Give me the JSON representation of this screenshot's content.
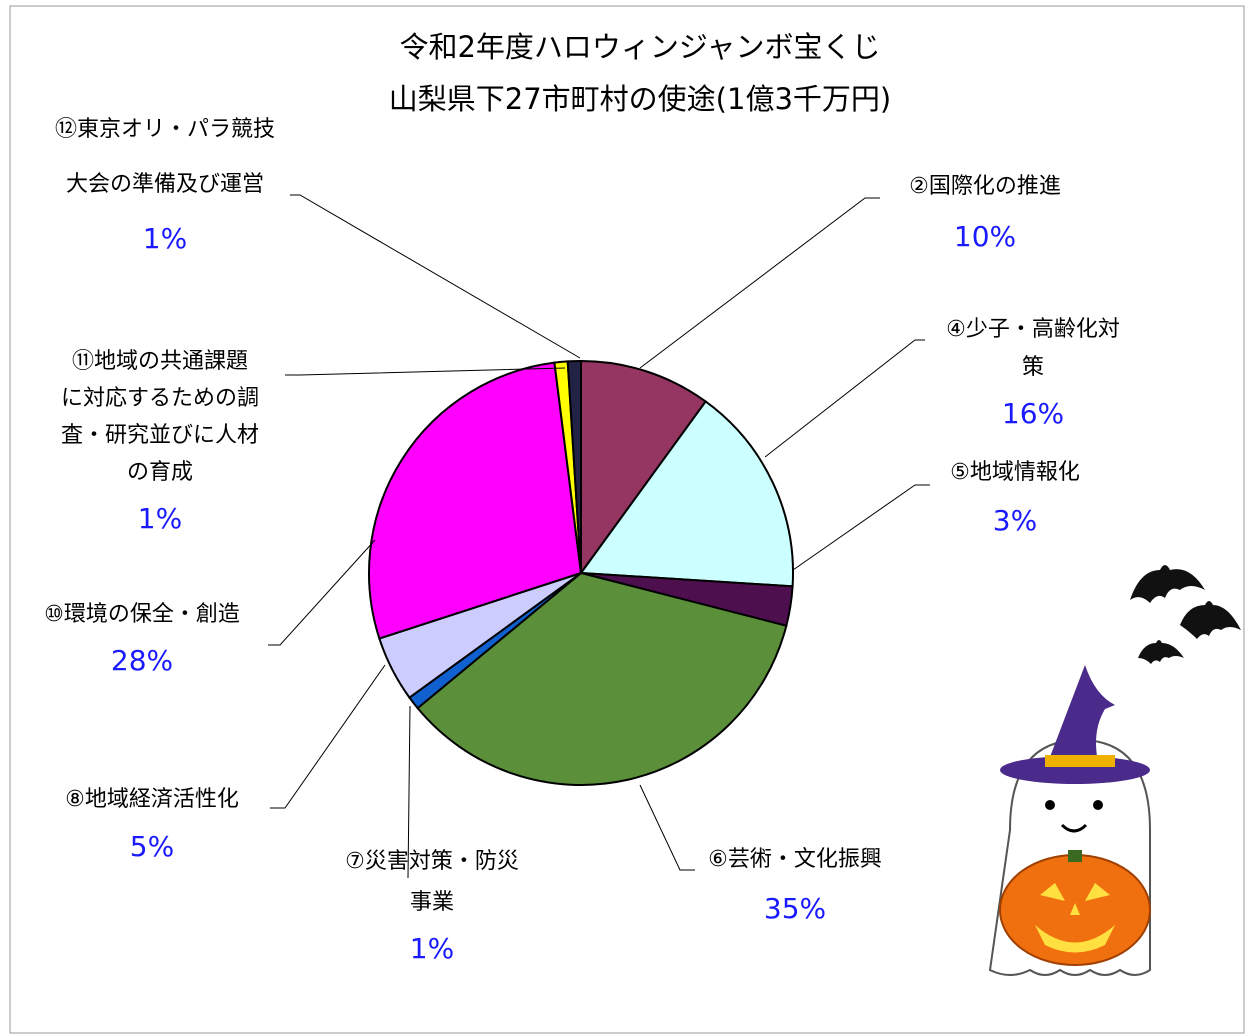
{
  "chart_data": {
    "type": "pie",
    "title": [
      "令和2年度ハロウィンジャンボ宝くじ",
      "山梨県下27市町村の使途(1億3千万円)"
    ],
    "categories": [
      [
        "②国際化の推進"
      ],
      [
        "④少子・高齢化対",
        "策"
      ],
      [
        "⑤地域情報化"
      ],
      [
        "⑥芸術・文化振興"
      ],
      [
        "⑦災害対策・防災",
        "事業"
      ],
      [
        "⑧地域経済活性化"
      ],
      [
        "⑩環境の保全・創造"
      ],
      [
        "⑪地域の共通課題",
        "に対応するための調",
        "査・研究並びに人材",
        "の育成"
      ],
      [
        "⑫東京オリ・パラ競技",
        "大会の準備及び運営"
      ]
    ],
    "values": [
      10,
      16,
      3,
      35,
      1,
      5,
      28,
      1,
      1
    ],
    "value_labels": [
      "10%",
      "16%",
      "3%",
      "35%",
      "1%",
      "5%",
      "28%",
      "1%",
      "1%"
    ],
    "colors": [
      "#953561",
      "#ccffff",
      "#4d0f4d",
      "#5b8f3a",
      "#1060d0",
      "#ccccff",
      "#ff00ff",
      "#ffff00",
      "#222244"
    ]
  }
}
